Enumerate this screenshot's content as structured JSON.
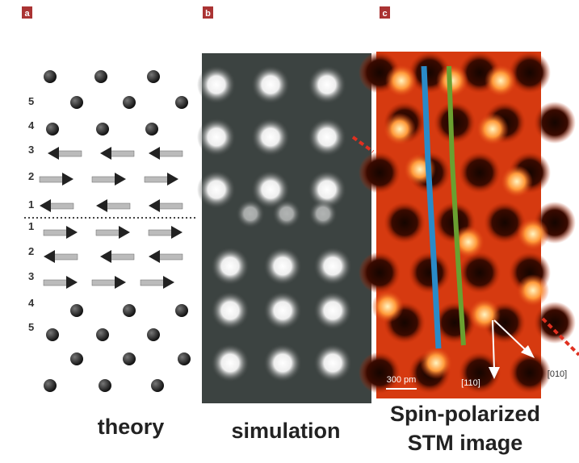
{
  "panels": [
    {
      "label": "a",
      "caption": "theory"
    },
    {
      "label": "b",
      "caption": "simulation"
    },
    {
      "label": "c",
      "caption_lines": [
        "Spin-polarized",
        "STM image"
      ]
    }
  ],
  "theory": {
    "rows_above": [
      "5",
      "4",
      "3",
      "2",
      "1"
    ],
    "rows_below": [
      "1",
      "2",
      "3",
      "4",
      "5"
    ]
  },
  "stm": {
    "scale_bar": "300 pm",
    "directions": [
      "[110]",
      "[010]"
    ]
  }
}
